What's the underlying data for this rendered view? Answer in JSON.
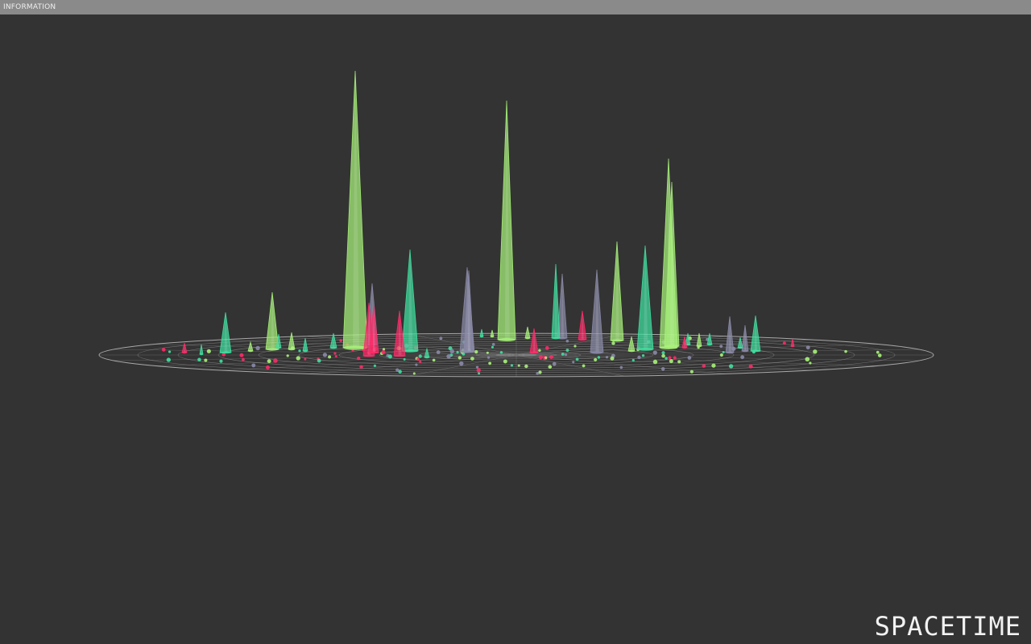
{
  "header": {
    "label": "INFORMATION"
  },
  "brand": {
    "title": "SPACETIME"
  },
  "colors": {
    "background": "#333333",
    "bar": "#8a8a8a",
    "grid": "#bdbdbd",
    "lime": "#a8f27a",
    "teal": "#3fe0a0",
    "gray": "#8a8aa8",
    "red": "#ff2a68"
  }
}
